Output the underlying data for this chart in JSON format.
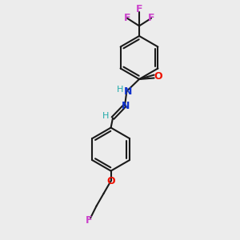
{
  "bg_color": "#ececec",
  "bond_color": "#1a1a1a",
  "F_color": "#cc44cc",
  "O_color": "#ee1100",
  "N_color": "#1133cc",
  "H_color": "#22aaaa",
  "figsize": [
    3.0,
    3.0
  ],
  "dpi": 100,
  "xlim": [
    0,
    10
  ],
  "ylim": [
    0,
    10
  ],
  "ring_r": 0.9,
  "lw": 1.5,
  "fs": 9
}
